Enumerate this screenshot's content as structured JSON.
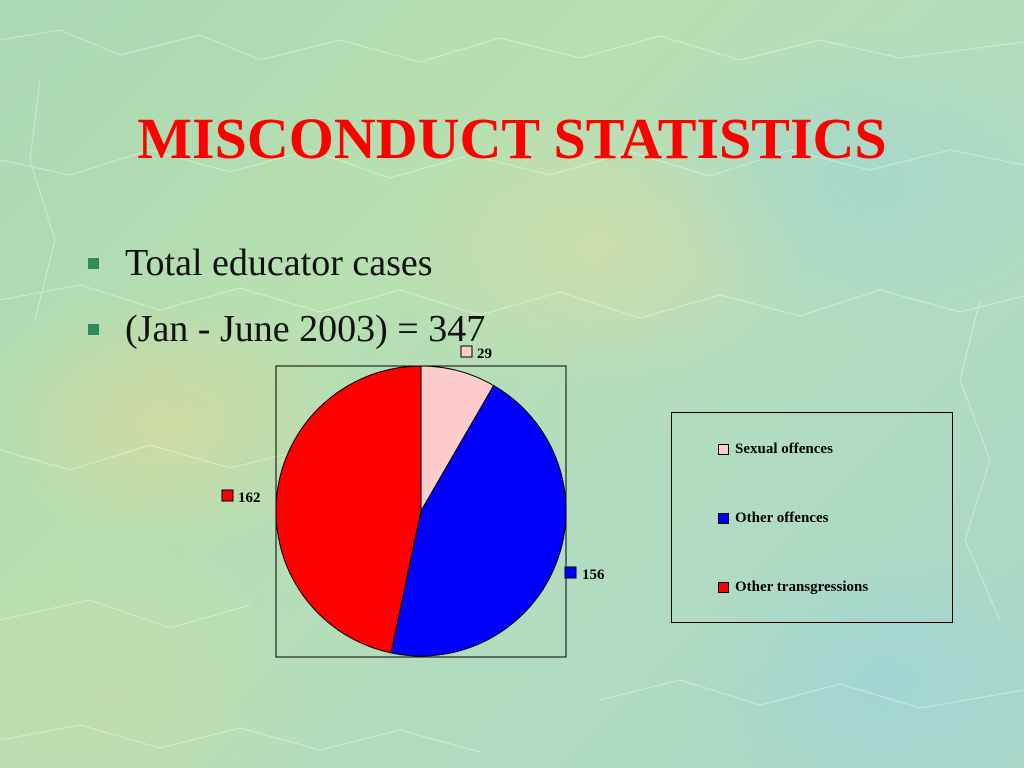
{
  "slide": {
    "title": "MISCONDUCT STATISTICS",
    "bullets": [
      {
        "text": "Total educator cases"
      },
      {
        "text": "(Jan - June 2003) = 347"
      }
    ]
  },
  "chart_data": {
    "type": "pie",
    "categories": [
      "Sexual offences",
      "Other offences",
      "Other transgressions"
    ],
    "values": [
      29,
      156,
      162
    ],
    "colors": [
      "#ffcccc",
      "#0000ff",
      "#ff0000"
    ],
    "data_labels": [
      "29",
      "156",
      "162"
    ],
    "legend": {
      "placement": "right",
      "items": [
        "Sexual offences",
        "Other offences",
        "Other transgressions"
      ]
    }
  }
}
